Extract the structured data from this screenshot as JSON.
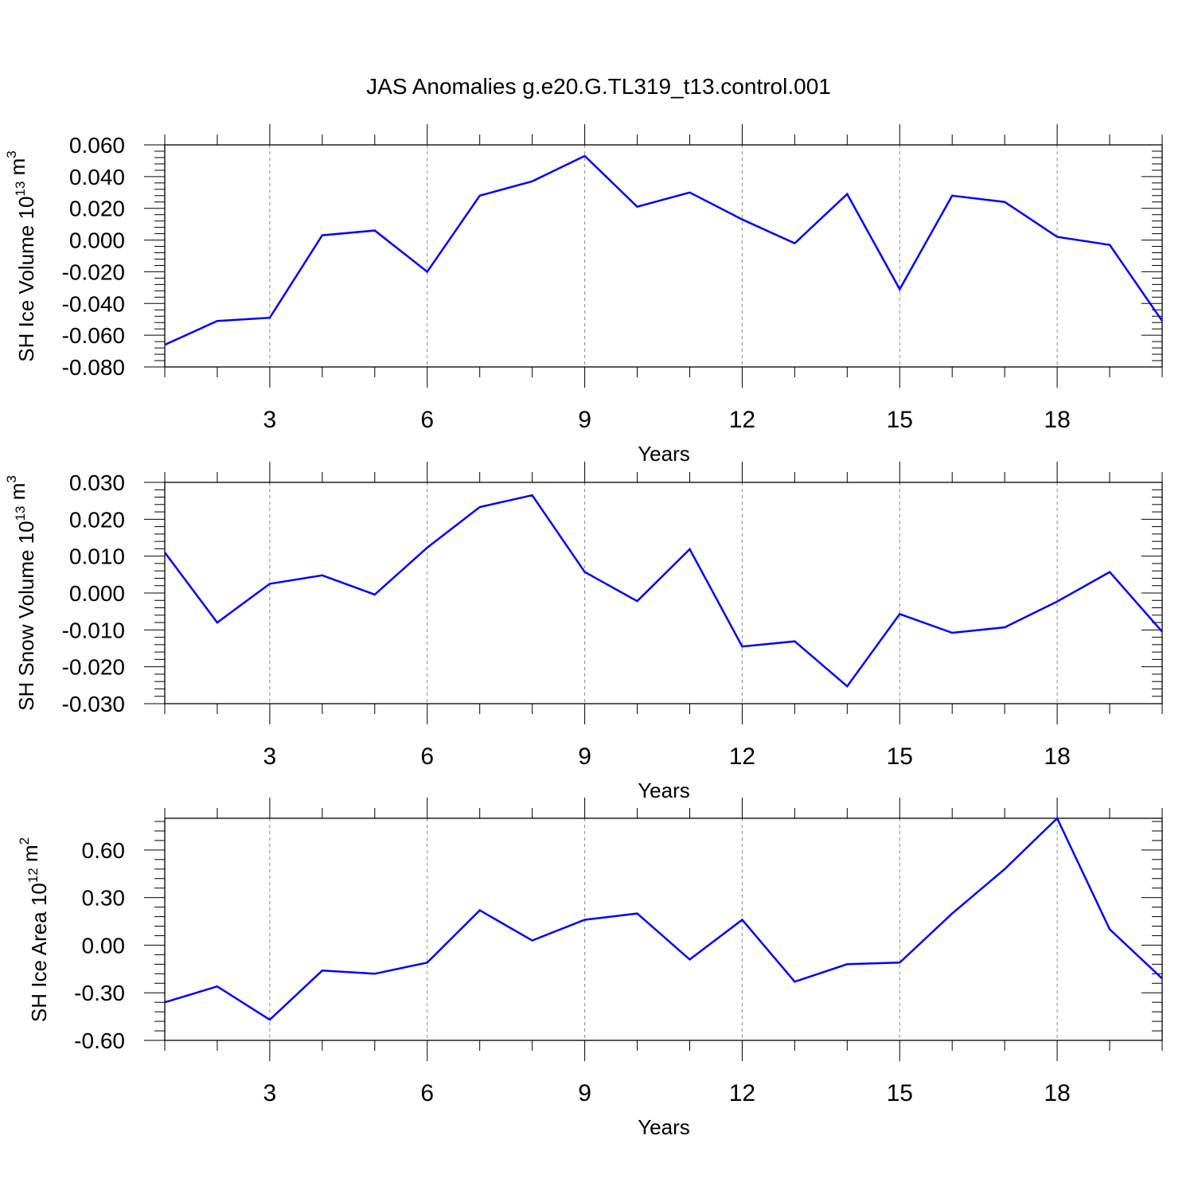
{
  "chart_data": [
    {
      "type": "line",
      "title": "JAS Anomalies g.e20.G.TL319_t13.control.001",
      "ylabel": {
        "prefix": "SH Ice Volume 10",
        "exp": "13",
        "unit": " m",
        "unit_exp": "3"
      },
      "xlabel": "Years",
      "xlim": [
        1,
        20
      ],
      "ylim": [
        -0.08,
        0.06
      ],
      "yticks": [
        -0.08,
        -0.06,
        -0.04,
        -0.02,
        0.0,
        0.02,
        0.04,
        0.06
      ],
      "ytick_labels": [
        "-0.080",
        "-0.060",
        "-0.040",
        "-0.020",
        "0.000",
        "0.020",
        "0.040",
        "0.060"
      ],
      "xticks": [
        3,
        6,
        9,
        12,
        15,
        18
      ],
      "xtick_labels": [
        "3",
        "6",
        "9",
        "12",
        "15",
        "18"
      ],
      "x": [
        1,
        2,
        3,
        4,
        5,
        6,
        7,
        8,
        9,
        10,
        11,
        12,
        13,
        14,
        15,
        16,
        17,
        18,
        19,
        20
      ],
      "series": [
        {
          "name": "SH Ice Volume",
          "color": "#0000ff",
          "values": [
            -0.066,
            -0.051,
            -0.049,
            0.003,
            0.006,
            -0.02,
            0.028,
            0.037,
            0.053,
            0.021,
            0.03,
            0.013,
            -0.002,
            0.029,
            -0.031,
            0.028,
            0.024,
            0.002,
            -0.003,
            -0.051
          ]
        }
      ]
    },
    {
      "type": "line",
      "ylabel": {
        "prefix": "SH Snow Volume 10",
        "exp": "13",
        "unit": " m",
        "unit_exp": "3"
      },
      "xlabel": "Years",
      "xlim": [
        1,
        20
      ],
      "ylim": [
        -0.03,
        0.03
      ],
      "yticks": [
        -0.03,
        -0.02,
        -0.01,
        0.0,
        0.01,
        0.02,
        0.03
      ],
      "ytick_labels": [
        "-0.030",
        "-0.020",
        "-0.010",
        "0.000",
        "0.010",
        "0.020",
        "0.030"
      ],
      "xticks": [
        3,
        6,
        9,
        12,
        15,
        18
      ],
      "xtick_labels": [
        "3",
        "6",
        "9",
        "12",
        "15",
        "18"
      ],
      "x": [
        1,
        2,
        3,
        4,
        5,
        6,
        7,
        8,
        9,
        10,
        11,
        12,
        13,
        14,
        15,
        16,
        17,
        18,
        19,
        20
      ],
      "series": [
        {
          "name": "SH Snow Volume",
          "color": "#0000ff",
          "values": [
            0.011,
            -0.008,
            0.0025,
            0.0048,
            -0.0004,
            0.0123,
            0.0233,
            0.0265,
            0.0057,
            -0.0022,
            0.0119,
            -0.0145,
            -0.0131,
            -0.0253,
            -0.0057,
            -0.0108,
            -0.0093,
            -0.0023,
            0.0057,
            -0.0105
          ]
        }
      ]
    },
    {
      "type": "line",
      "ylabel": {
        "prefix": "SH Ice Area 10",
        "exp": "12",
        "unit": " m",
        "unit_exp": "2"
      },
      "xlabel": "Years",
      "xlim": [
        1,
        20
      ],
      "ylim": [
        -0.6,
        0.8
      ],
      "yticks": [
        -0.6,
        -0.3,
        0.0,
        0.3,
        0.6
      ],
      "ytick_labels": [
        "-0.60",
        "-0.30",
        "0.00",
        "0.30",
        "0.60"
      ],
      "xticks": [
        3,
        6,
        9,
        12,
        15,
        18
      ],
      "xtick_labels": [
        "3",
        "6",
        "9",
        "12",
        "15",
        "18"
      ],
      "x": [
        1,
        2,
        3,
        4,
        5,
        6,
        7,
        8,
        9,
        10,
        11,
        12,
        13,
        14,
        15,
        16,
        17,
        18,
        19,
        20
      ],
      "series": [
        {
          "name": "SH Ice Area",
          "color": "#0000ff",
          "values": [
            -0.36,
            -0.26,
            -0.47,
            -0.16,
            -0.18,
            -0.11,
            0.22,
            0.03,
            0.16,
            0.2,
            -0.09,
            0.16,
            -0.23,
            -0.12,
            -0.11,
            0.2,
            0.48,
            0.8,
            0.1,
            -0.21
          ]
        }
      ]
    }
  ]
}
